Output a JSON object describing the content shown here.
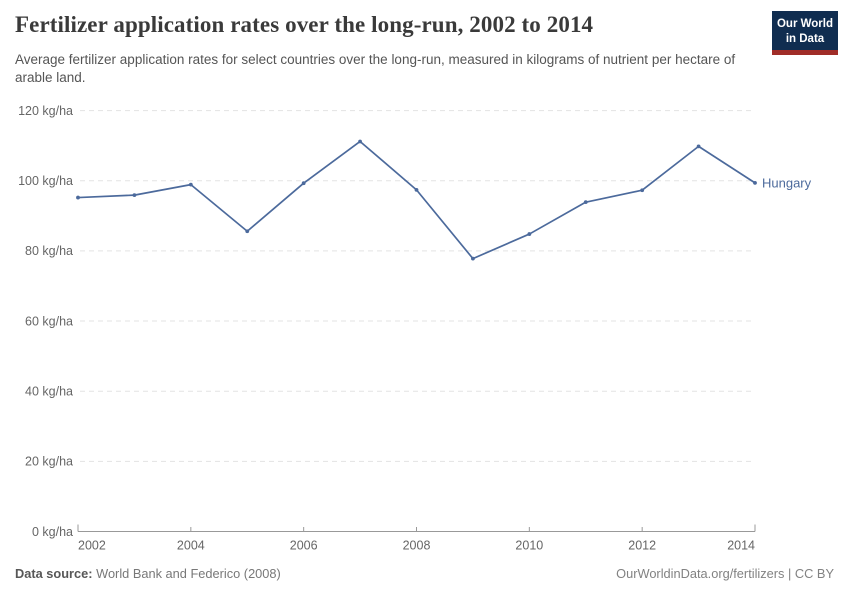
{
  "header": {
    "title": "Fertilizer application rates over the long-run, 2002 to 2014",
    "subtitle": "Average fertilizer application rates for select countries over the long-run, measured in kilograms of nutrient per hectare of arable land.",
    "logo": {
      "line1": "Our World",
      "line2": "in Data",
      "bg_color": "#102d50",
      "stripe_color": "#a02d28"
    }
  },
  "chart_data": {
    "type": "line",
    "title": "Fertilizer application rates over the long-run, 2002 to 2014",
    "x": [
      2002,
      2003,
      2004,
      2005,
      2006,
      2007,
      2008,
      2009,
      2010,
      2011,
      2012,
      2013,
      2014
    ],
    "series": [
      {
        "name": "Hungary",
        "color": "#4C6A9C",
        "values": [
          95.2,
          95.9,
          98.9,
          85.6,
          99.3,
          111.2,
          97.4,
          77.8,
          84.8,
          93.9,
          97.3,
          109.8,
          99.4
        ]
      }
    ],
    "xlabel": "",
    "ylabel": "",
    "unit": "kg/ha",
    "ylim": [
      0,
      120
    ],
    "xlim": [
      2002,
      2014
    ],
    "y_ticks": [
      {
        "value": 0,
        "label": "0 kg/ha"
      },
      {
        "value": 20,
        "label": "20 kg/ha"
      },
      {
        "value": 40,
        "label": "40 kg/ha"
      },
      {
        "value": 60,
        "label": "60 kg/ha"
      },
      {
        "value": 80,
        "label": "80 kg/ha"
      },
      {
        "value": 100,
        "label": "100 kg/ha"
      },
      {
        "value": 120,
        "label": "120 kg/ha"
      }
    ],
    "x_ticks": [
      2002,
      2004,
      2006,
      2008,
      2010,
      2012,
      2014
    ],
    "grid": "horizontal-dashed",
    "legend_position": "line-end",
    "colors": {
      "grid": "#e3e3e3",
      "axis": "#999999",
      "tick_label": "#666666"
    }
  },
  "footer": {
    "source_label": "Data source:",
    "source_text": "World Bank and Federico (2008)",
    "credit": "OurWorldinData.org/fertilizers | CC BY"
  }
}
